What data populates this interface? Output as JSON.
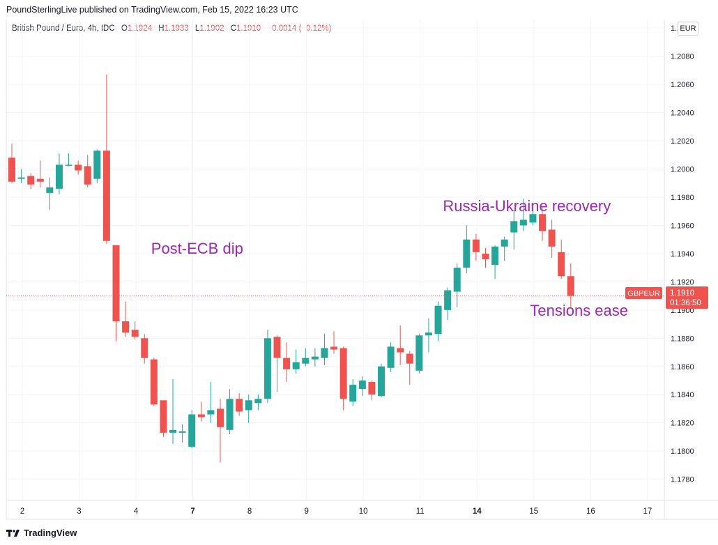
{
  "header": {
    "publisher": "PoundSterlingLive published on TradingView.com, Feb 15, 2022 16:23 UTC"
  },
  "legend": {
    "symbol": "British Pound / Euro, 4h, IDC",
    "o_label": "O",
    "o_value": "1.1924",
    "h_label": "H",
    "h_value": "1.1933",
    "l_label": "L",
    "l_value": "1.1902",
    "c_label": "C",
    "c_value": "1.1910",
    "change": "−0.0014 (−0.12%)"
  },
  "currency_badge": "EUR",
  "price_tag": {
    "symbol": "GBPEUR",
    "price": "1.1910",
    "countdown": "01:36:50"
  },
  "footer": {
    "brand": "TradingView"
  },
  "colors": {
    "up": "#26a69a",
    "down": "#ef5350",
    "annotation": "#9c27b0",
    "grid": "#f0f3fa",
    "price_line": "#ef5350"
  },
  "chart_data": {
    "type": "candlestick",
    "title": "British Pound / Euro, 4h, IDC",
    "symbol": "GBPEUR",
    "y_axis": {
      "ticks": [
        "1.1780",
        "1.1800",
        "1.1820",
        "1.1840",
        "1.1860",
        "1.1880",
        "1.1900",
        "1.1920",
        "1.1940",
        "1.1960",
        "1.1980",
        "1.2000",
        "1.2020",
        "1.2040",
        "1.2060",
        "1.2080",
        "1.2100"
      ],
      "range": [
        1.1765,
        1.2106
      ]
    },
    "x_axis": {
      "ticks": [
        {
          "label": "2",
          "idx": 1.1,
          "bold": false
        },
        {
          "label": "3",
          "idx": 7.1,
          "bold": false
        },
        {
          "label": "4",
          "idx": 13.1,
          "bold": false
        },
        {
          "label": "7",
          "idx": 19.1,
          "bold": true
        },
        {
          "label": "8",
          "idx": 25.1,
          "bold": false
        },
        {
          "label": "9",
          "idx": 31.1,
          "bold": false
        },
        {
          "label": "10",
          "idx": 37.1,
          "bold": false
        },
        {
          "label": "11",
          "idx": 43.1,
          "bold": false
        },
        {
          "label": "14",
          "idx": 49.1,
          "bold": true
        },
        {
          "label": "15",
          "idx": 55.1,
          "bold": false
        },
        {
          "label": "16",
          "idx": 61.1,
          "bold": false
        },
        {
          "label": "17",
          "idx": 67.1,
          "bold": false
        }
      ]
    },
    "last_price": 1.191,
    "candles": [
      {
        "o": 1.2008,
        "h": 1.2018,
        "l": 1.199,
        "c": 1.1991
      },
      {
        "o": 1.1993,
        "h": 1.2,
        "l": 1.199,
        "c": 1.1994
      },
      {
        "o": 1.1995,
        "h": 1.1997,
        "l": 1.1986,
        "c": 1.1989
      },
      {
        "o": 1.1993,
        "h": 1.2006,
        "l": 1.1987,
        "c": 1.1991
      },
      {
        "o": 1.1983,
        "h": 1.1994,
        "l": 1.1971,
        "c": 1.1987
      },
      {
        "o": 1.1986,
        "h": 1.2011,
        "l": 1.1982,
        "c": 1.2003
      },
      {
        "o": 1.2003,
        "h": 1.2011,
        "l": 1.2002,
        "c": 1.2003
      },
      {
        "o": 1.2003,
        "h": 1.2006,
        "l": 1.1996,
        "c": 1.1999
      },
      {
        "o": 1.2002,
        "h": 1.201,
        "l": 1.1987,
        "c": 1.1989
      },
      {
        "o": 1.1993,
        "h": 1.2014,
        "l": 1.199,
        "c": 1.2013
      },
      {
        "o": 1.2013,
        "h": 1.2067,
        "l": 1.1947,
        "c": 1.1949
      },
      {
        "o": 1.1946,
        "h": 1.1946,
        "l": 1.1878,
        "c": 1.1892
      },
      {
        "o": 1.1892,
        "h": 1.1906,
        "l": 1.1881,
        "c": 1.1884
      },
      {
        "o": 1.1886,
        "h": 1.1892,
        "l": 1.1879,
        "c": 1.1881
      },
      {
        "o": 1.188,
        "h": 1.1883,
        "l": 1.1862,
        "c": 1.1866
      },
      {
        "o": 1.1865,
        "h": 1.1866,
        "l": 1.1832,
        "c": 1.1833
      },
      {
        "o": 1.1836,
        "h": 1.1836,
        "l": 1.181,
        "c": 1.1813
      },
      {
        "o": 1.1813,
        "h": 1.1851,
        "l": 1.1805,
        "c": 1.1815
      },
      {
        "o": 1.1813,
        "h": 1.1819,
        "l": 1.1806,
        "c": 1.1814
      },
      {
        "o": 1.1803,
        "h": 1.1829,
        "l": 1.1802,
        "c": 1.1826
      },
      {
        "o": 1.1826,
        "h": 1.1835,
        "l": 1.1821,
        "c": 1.1824
      },
      {
        "o": 1.1826,
        "h": 1.1849,
        "l": 1.182,
        "c": 1.1829
      },
      {
        "o": 1.183,
        "h": 1.1837,
        "l": 1.1792,
        "c": 1.1817
      },
      {
        "o": 1.1815,
        "h": 1.1844,
        "l": 1.1812,
        "c": 1.1837
      },
      {
        "o": 1.1837,
        "h": 1.1841,
        "l": 1.1825,
        "c": 1.1828
      },
      {
        "o": 1.1829,
        "h": 1.184,
        "l": 1.182,
        "c": 1.1836
      },
      {
        "o": 1.1834,
        "h": 1.184,
        "l": 1.1829,
        "c": 1.1837
      },
      {
        "o": 1.1837,
        "h": 1.1886,
        "l": 1.1834,
        "c": 1.188
      },
      {
        "o": 1.1881,
        "h": 1.1882,
        "l": 1.1842,
        "c": 1.1866
      },
      {
        "o": 1.1866,
        "h": 1.1877,
        "l": 1.1849,
        "c": 1.1858
      },
      {
        "o": 1.1858,
        "h": 1.1872,
        "l": 1.1855,
        "c": 1.1863
      },
      {
        "o": 1.1862,
        "h": 1.1873,
        "l": 1.186,
        "c": 1.1866
      },
      {
        "o": 1.1865,
        "h": 1.1873,
        "l": 1.186,
        "c": 1.1867
      },
      {
        "o": 1.1866,
        "h": 1.1883,
        "l": 1.1861,
        "c": 1.1873
      },
      {
        "o": 1.1874,
        "h": 1.1885,
        "l": 1.1869,
        "c": 1.1872
      },
      {
        "o": 1.1873,
        "h": 1.1874,
        "l": 1.1829,
        "c": 1.1837
      },
      {
        "o": 1.1835,
        "h": 1.1851,
        "l": 1.1832,
        "c": 1.1847
      },
      {
        "o": 1.1844,
        "h": 1.1853,
        "l": 1.1839,
        "c": 1.185
      },
      {
        "o": 1.1849,
        "h": 1.185,
        "l": 1.1836,
        "c": 1.184
      },
      {
        "o": 1.1839,
        "h": 1.1862,
        "l": 1.1838,
        "c": 1.186
      },
      {
        "o": 1.1859,
        "h": 1.1877,
        "l": 1.1856,
        "c": 1.1874
      },
      {
        "o": 1.1873,
        "h": 1.1889,
        "l": 1.1861,
        "c": 1.187
      },
      {
        "o": 1.1869,
        "h": 1.1871,
        "l": 1.1847,
        "c": 1.1862
      },
      {
        "o": 1.1857,
        "h": 1.1883,
        "l": 1.1855,
        "c": 1.1882
      },
      {
        "o": 1.1882,
        "h": 1.1894,
        "l": 1.187,
        "c": 1.1884
      },
      {
        "o": 1.1883,
        "h": 1.1906,
        "l": 1.1878,
        "c": 1.1903
      },
      {
        "o": 1.19,
        "h": 1.1916,
        "l": 1.1893,
        "c": 1.1914
      },
      {
        "o": 1.1913,
        "h": 1.1933,
        "l": 1.1902,
        "c": 1.193
      },
      {
        "o": 1.193,
        "h": 1.196,
        "l": 1.1926,
        "c": 1.195
      },
      {
        "o": 1.195,
        "h": 1.1954,
        "l": 1.1935,
        "c": 1.1941
      },
      {
        "o": 1.194,
        "h": 1.1944,
        "l": 1.193,
        "c": 1.1936
      },
      {
        "o": 1.1932,
        "h": 1.1946,
        "l": 1.1922,
        "c": 1.1945
      },
      {
        "o": 1.1945,
        "h": 1.1952,
        "l": 1.1935,
        "c": 1.195
      },
      {
        "o": 1.1955,
        "h": 1.1971,
        "l": 1.1943,
        "c": 1.1963
      },
      {
        "o": 1.196,
        "h": 1.1979,
        "l": 1.1956,
        "c": 1.1964
      },
      {
        "o": 1.1962,
        "h": 1.1971,
        "l": 1.196,
        "c": 1.1968
      },
      {
        "o": 1.1968,
        "h": 1.1972,
        "l": 1.1949,
        "c": 1.1956
      },
      {
        "o": 1.1957,
        "h": 1.1964,
        "l": 1.1937,
        "c": 1.1945
      },
      {
        "o": 1.1941,
        "h": 1.195,
        "l": 1.1922,
        "c": 1.1924
      },
      {
        "o": 1.1924,
        "h": 1.1933,
        "l": 1.1902,
        "c": 1.191
      }
    ],
    "annotations": [
      {
        "text": "Post-ECB dip",
        "idx": 14.7,
        "price": 1.194
      },
      {
        "text": "Russia-Ukraine recovery",
        "idx": 45.5,
        "price": 1.197
      },
      {
        "text": "Tensions ease",
        "idx": 54.7,
        "price": 1.1896
      }
    ]
  }
}
